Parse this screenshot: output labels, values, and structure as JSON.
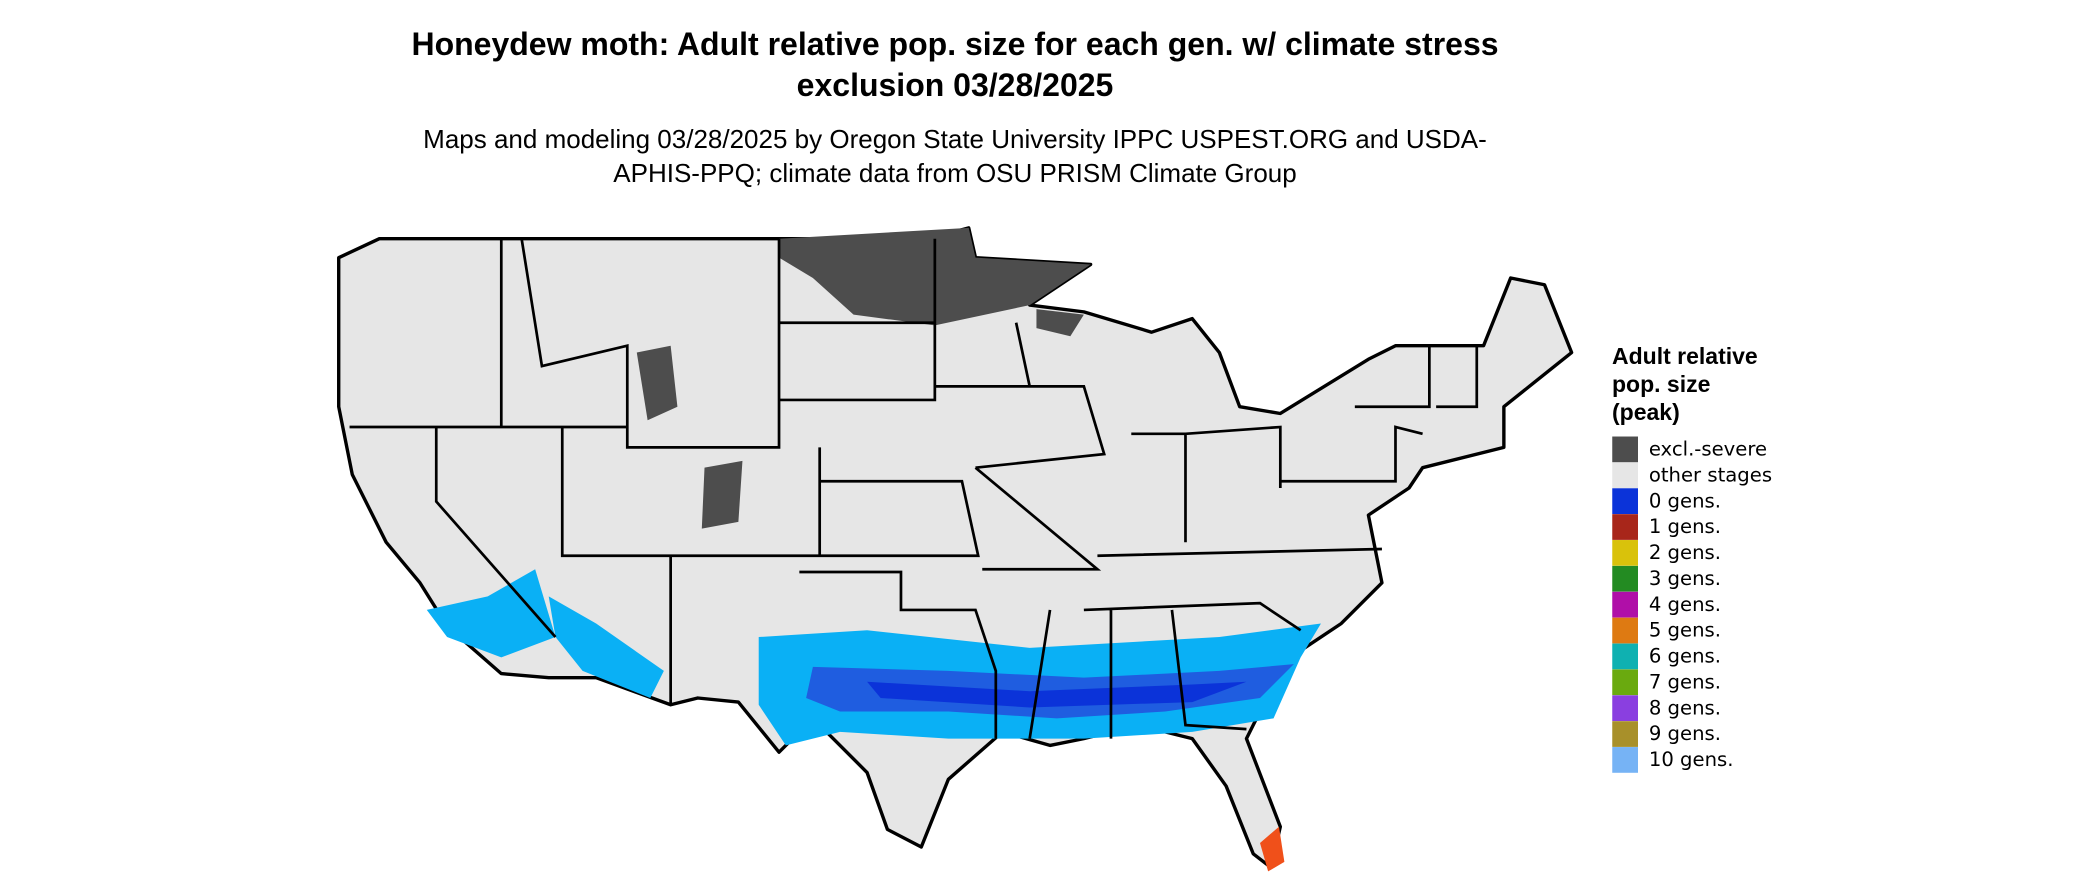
{
  "title": "Honeydew moth: Adult relative pop. size for each gen. w/ climate stress exclusion 03/28/2025",
  "subtitle": "Maps and modeling 03/28/2025 by Oregon State University IPPC USPEST.ORG and USDA-APHIS-PPQ; climate data from OSU PRISM Climate Group",
  "legend": {
    "title": "Adult relative pop. size (peak)",
    "items": [
      {
        "label": "excl.-severe",
        "color": "#4d4d4d"
      },
      {
        "label": "other stages",
        "color": "#e6e6e6"
      },
      {
        "label": "0 gens.",
        "color": "#0b33d9"
      },
      {
        "label": "1 gens.",
        "color": "#a8261a"
      },
      {
        "label": "2 gens.",
        "color": "#d9c20b"
      },
      {
        "label": "3 gens.",
        "color": "#238b22"
      },
      {
        "label": "4 gens.",
        "color": "#b00fa8"
      },
      {
        "label": "5 gens.",
        "color": "#de7a12"
      },
      {
        "label": "6 gens.",
        "color": "#0fb1b1"
      },
      {
        "label": "7 gens.",
        "color": "#6aaa0f"
      },
      {
        "label": "8 gens.",
        "color": "#8a3fe0"
      },
      {
        "label": "9 gens.",
        "color": "#a8902a"
      },
      {
        "label": "10 gens.",
        "color": "#76b3f5"
      }
    ]
  }
}
